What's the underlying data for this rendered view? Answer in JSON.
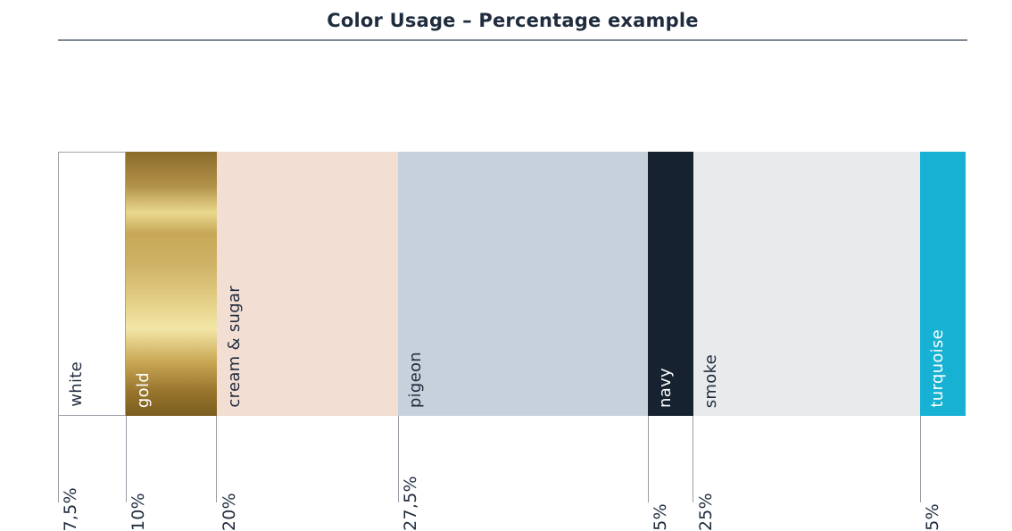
{
  "title": "Color Usage – Percentage example",
  "palette": {
    "text_dark": "#1f2c3e",
    "rule": "#7e8795",
    "divider": "#989da5",
    "white_border": "#9ea3aa",
    "background": "#ffffff"
  },
  "chart_data": {
    "type": "bar",
    "stacked": true,
    "orientation": "horizontal",
    "title": "Color Usage – Percentage example",
    "unit": "%",
    "total": 100,
    "categories": [
      "white",
      "gold",
      "cream & sugar",
      "pigeon",
      "navy",
      "smoke",
      "turquoise"
    ],
    "values": [
      7.5,
      10,
      20,
      27.5,
      5,
      25,
      5
    ],
    "segments": [
      {
        "label": "white",
        "value": 7.5,
        "value_label": "7,5%",
        "color": "#ffffff",
        "label_color": "#1f2c3e",
        "outlined": true
      },
      {
        "label": "gold",
        "value": 10,
        "value_label": "10%",
        "color": "gold-gradient",
        "label_color": "#ffffff",
        "outlined": false
      },
      {
        "label": "cream & sugar",
        "value": 20,
        "value_label": "20%",
        "color": "#f2ded3",
        "label_color": "#1f2c3e",
        "outlined": false
      },
      {
        "label": "pigeon",
        "value": 27.5,
        "value_label": "27,5%",
        "color": "#c7d1dc",
        "label_color": "#1f2c3e",
        "outlined": false
      },
      {
        "label": "navy",
        "value": 5,
        "value_label": "5%",
        "color": "#162230",
        "label_color": "#ffffff",
        "outlined": false
      },
      {
        "label": "smoke",
        "value": 25,
        "value_label": "25%",
        "color": "#e8eaeb",
        "label_color": "#1f2c3e",
        "outlined": false
      },
      {
        "label": "turquoise",
        "value": 5,
        "value_label": "5%",
        "color": "#16b1d3",
        "label_color": "#ffffff",
        "outlined": false
      }
    ],
    "gold_gradient_stops": [
      "#8a6b29 0%",
      "#b2914a 13%",
      "#e9d88e 23%",
      "#c6a857 31%",
      "#cfb266 43%",
      "#e5d28a 58%",
      "#f3e6a8 67%",
      "#cbaa57 79%",
      "#97742c 91%",
      "#7b5d1f 100%"
    ],
    "legend": "none",
    "grid": false
  }
}
